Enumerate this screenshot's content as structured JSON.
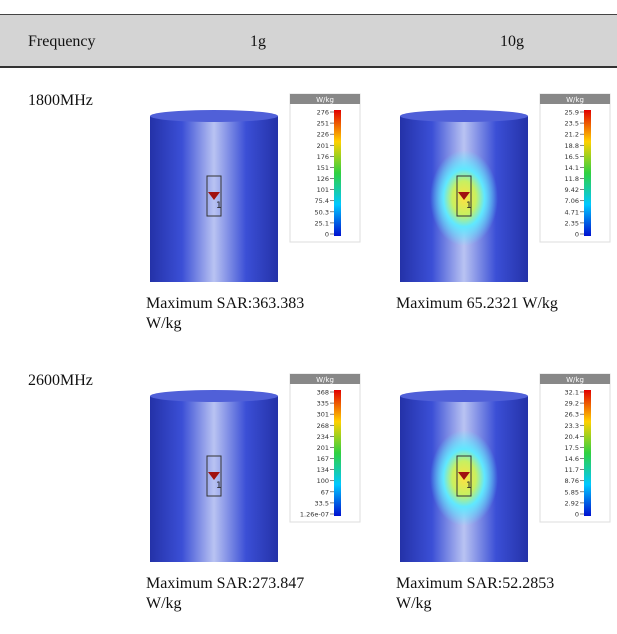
{
  "header": {
    "cells": [
      "Frequency",
      "1g",
      "10g"
    ]
  },
  "rows": [
    {
      "frequency": "1800MHz",
      "cells": [
        {
          "image": {
            "unit": "W/kg",
            "scale": [
              "276",
              "251",
              "226",
              "201",
              "176",
              "151",
              "126",
              "101",
              "75.4",
              "50.3",
              "25.1",
              "0"
            ],
            "marker": "1"
          },
          "caption": "Maximum SAR:363.383 W/kg"
        },
        {
          "image": {
            "unit": "W/kg",
            "scale": [
              "25.9",
              "23.5",
              "21.2",
              "18.8",
              "16.5",
              "14.1",
              "11.8",
              "9.42",
              "7.06",
              "4.71",
              "2.35",
              "0"
            ],
            "marker": "1"
          },
          "caption": "Maximum 65.2321 W/kg"
        }
      ]
    },
    {
      "frequency": "2600MHz",
      "cells": [
        {
          "image": {
            "unit": "W/kg",
            "scale": [
              "368",
              "335",
              "301",
              "268",
              "234",
              "201",
              "167",
              "134",
              "100",
              "67",
              "33.5",
              "1.26e-07"
            ],
            "marker": "1"
          },
          "caption": "Maximum SAR:273.847 W/kg"
        },
        {
          "image": {
            "unit": "W/kg",
            "scale": [
              "32.1",
              "29.2",
              "26.3",
              "23.3",
              "20.4",
              "17.5",
              "14.6",
              "11.7",
              "8.76",
              "5.85",
              "2.92",
              "0"
            ],
            "marker": "1"
          },
          "caption": "Maximum SAR:52.2853 W/kg"
        }
      ]
    }
  ]
}
